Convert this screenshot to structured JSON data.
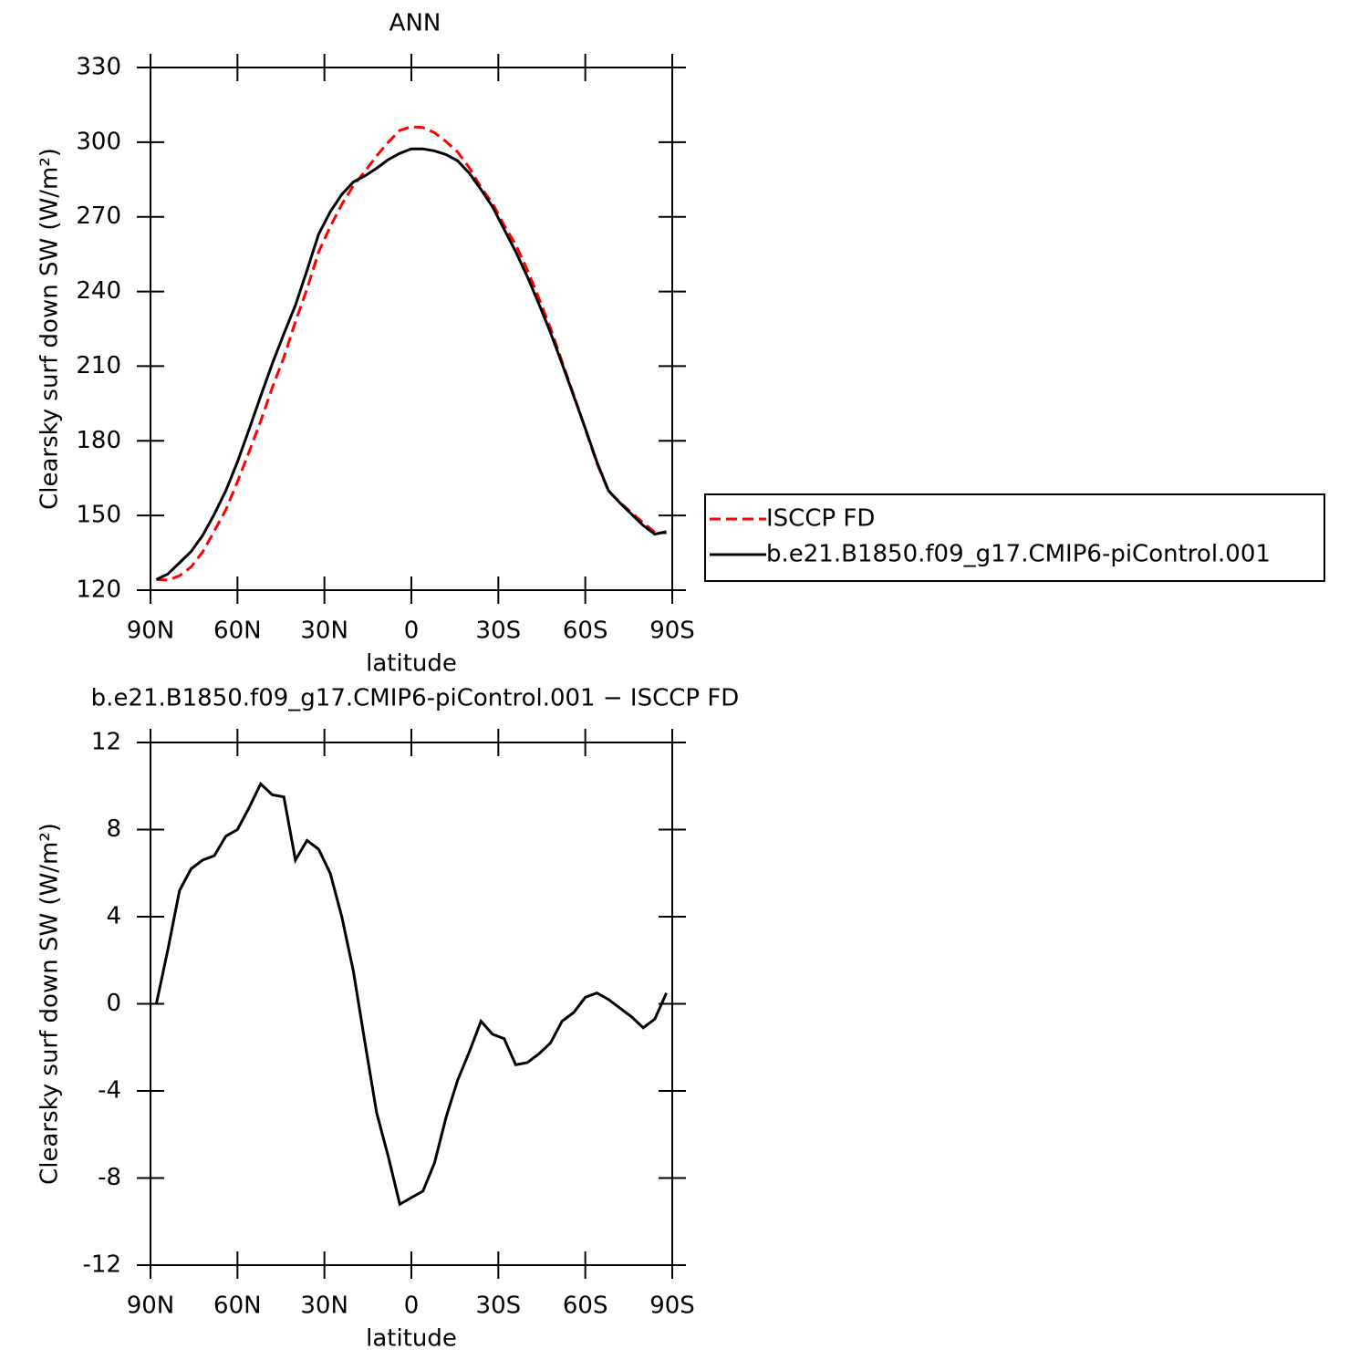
{
  "chart_data": [
    {
      "type": "line",
      "title": "ANN",
      "xlabel": "latitude",
      "ylabel": "Clearsky surf down SW (W/m²)",
      "x": [
        88,
        84,
        80,
        76,
        72,
        68,
        64,
        60,
        56,
        52,
        48,
        44,
        40,
        36,
        32,
        28,
        24,
        20,
        16,
        12,
        8,
        4,
        0,
        -4,
        -8,
        -12,
        -16,
        -20,
        -24,
        -28,
        -32,
        -36,
        -40,
        -44,
        -48,
        -52,
        -56,
        -60,
        -64,
        -68,
        -72,
        -76,
        -80,
        -84,
        -88
      ],
      "xlim": [
        90,
        -90
      ],
      "xticks": [
        {
          "value": 90,
          "label": "90N"
        },
        {
          "value": 60,
          "label": "60N"
        },
        {
          "value": 30,
          "label": "30N"
        },
        0,
        {
          "value": -30,
          "label": "30S"
        },
        {
          "value": -60,
          "label": "60S"
        },
        {
          "value": -90,
          "label": "90S"
        }
      ],
      "ylim": [
        120,
        330
      ],
      "yticks": [
        120,
        150,
        180,
        210,
        240,
        270,
        300,
        330
      ],
      "legend": "right",
      "series": [
        {
          "name": "ISCCP FD",
          "color": "#ff0000",
          "linestyle": "dashed",
          "values": [
            124.3,
            124.0,
            125.8,
            129.3,
            135.4,
            143.7,
            152.3,
            163.5,
            175.5,
            187.9,
            201.4,
            213.5,
            227.9,
            241,
            255.9,
            266,
            275,
            282.5,
            288.3,
            294.5,
            300,
            304.7,
            306.2,
            305.9,
            303.8,
            300.2,
            296,
            289.7,
            281.8,
            275.4,
            266.6,
            258.8,
            248.7,
            237.3,
            225.3,
            211.8,
            198.4,
            184.7,
            171,
            159.8,
            155.2,
            151.1,
            147.1,
            143.2,
            143
          ]
        },
        {
          "name": "b.e21.B1850.f09_g17.CMIP6-piControl.001",
          "color": "#000000",
          "linestyle": "solid",
          "values": [
            124.3,
            126.5,
            131,
            135.5,
            142,
            150.5,
            160,
            171.5,
            184.5,
            198,
            211,
            223,
            234.5,
            248.5,
            263,
            272,
            279,
            284,
            286.5,
            289.5,
            293,
            295.5,
            297.3,
            297.3,
            296.5,
            295,
            292.5,
            287.5,
            281,
            274,
            265,
            256,
            246,
            235,
            223.5,
            211,
            198,
            185,
            171.5,
            160,
            155,
            150.5,
            146,
            142.5,
            143.5
          ]
        }
      ]
    },
    {
      "type": "line",
      "title": "b.e21.B1850.f09_g17.CMIP6-piControl.001 − ISCCP FD",
      "xlabel": "latitude",
      "ylabel": "Clearsky surf down SW (W/m²)",
      "x": [
        88,
        84,
        80,
        76,
        72,
        68,
        64,
        60,
        56,
        52,
        48,
        44,
        40,
        36,
        32,
        28,
        24,
        20,
        16,
        12,
        8,
        4,
        0,
        -4,
        -8,
        -12,
        -16,
        -20,
        -24,
        -28,
        -32,
        -36,
        -40,
        -44,
        -48,
        -52,
        -56,
        -60,
        -64,
        -68,
        -72,
        -76,
        -80,
        -84,
        -88
      ],
      "xlim": [
        90,
        -90
      ],
      "xticks": [
        {
          "value": 90,
          "label": "90N"
        },
        {
          "value": 60,
          "label": "60N"
        },
        {
          "value": 30,
          "label": "30N"
        },
        0,
        {
          "value": -30,
          "label": "30S"
        },
        {
          "value": -60,
          "label": "60S"
        },
        {
          "value": -90,
          "label": "90S"
        }
      ],
      "ylim": [
        -12,
        12
      ],
      "yticks": [
        -12,
        -8,
        -4,
        0,
        4,
        8,
        12
      ],
      "color": "#000000",
      "values": [
        0,
        2.5,
        5.2,
        6.2,
        6.6,
        6.8,
        7.7,
        8.0,
        9.0,
        10.1,
        9.6,
        9.5,
        6.6,
        7.5,
        7.1,
        6.0,
        4.0,
        1.5,
        -1.8,
        -5.0,
        -7.0,
        -9.2,
        -8.9,
        -8.6,
        -7.3,
        -5.2,
        -3.5,
        -2.2,
        -0.8,
        -1.4,
        -1.6,
        -2.8,
        -2.7,
        -2.3,
        -1.8,
        -0.8,
        -0.4,
        0.3,
        0.5,
        0.2,
        -0.2,
        -0.6,
        -1.1,
        -0.7,
        0.5
      ]
    }
  ]
}
